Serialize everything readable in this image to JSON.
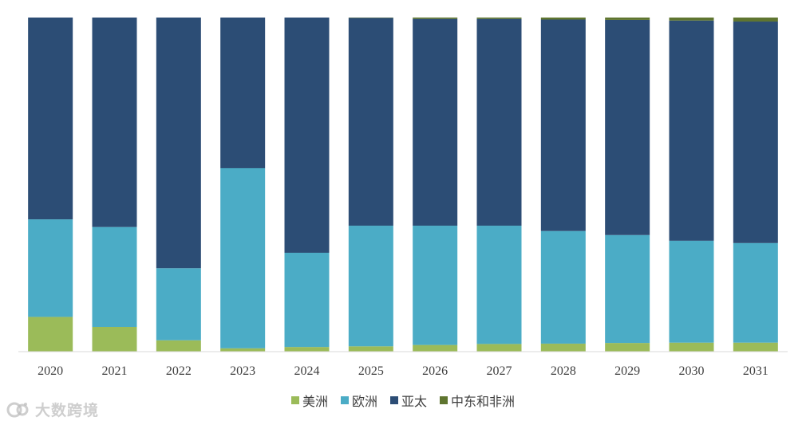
{
  "chart_data": {
    "type": "bar",
    "stacked": true,
    "normalized": true,
    "categories": [
      "2020",
      "2021",
      "2022",
      "2023",
      "2024",
      "2025",
      "2026",
      "2027",
      "2028",
      "2029",
      "2030",
      "2031"
    ],
    "series": [
      {
        "name": "美洲",
        "color": "#9bbb59",
        "values": [
          10.4,
          7.4,
          3.4,
          1.0,
          1.4,
          1.6,
          2.0,
          2.3,
          2.4,
          2.6,
          2.7,
          2.7
        ]
      },
      {
        "name": "欧洲",
        "color": "#4bacc6",
        "values": [
          29.2,
          29.9,
          21.6,
          53.9,
          28.2,
          36.1,
          35.7,
          35.4,
          33.7,
          32.3,
          30.5,
          29.8
        ]
      },
      {
        "name": "亚太",
        "color": "#2c4d75",
        "values": [
          60.4,
          62.7,
          75.0,
          45.1,
          70.4,
          62.2,
          61.9,
          61.9,
          63.3,
          64.4,
          65.9,
          66.3
        ]
      },
      {
        "name": "中东和非洲",
        "color": "#5f7530",
        "values": [
          0.0,
          0.0,
          0.0,
          0.0,
          0.0,
          0.1,
          0.4,
          0.4,
          0.6,
          0.7,
          0.9,
          1.2
        ]
      }
    ],
    "ylim": [
      0,
      100
    ],
    "grid": false,
    "legend_position": "bottom"
  },
  "watermark": {
    "text": "大数跨境"
  }
}
